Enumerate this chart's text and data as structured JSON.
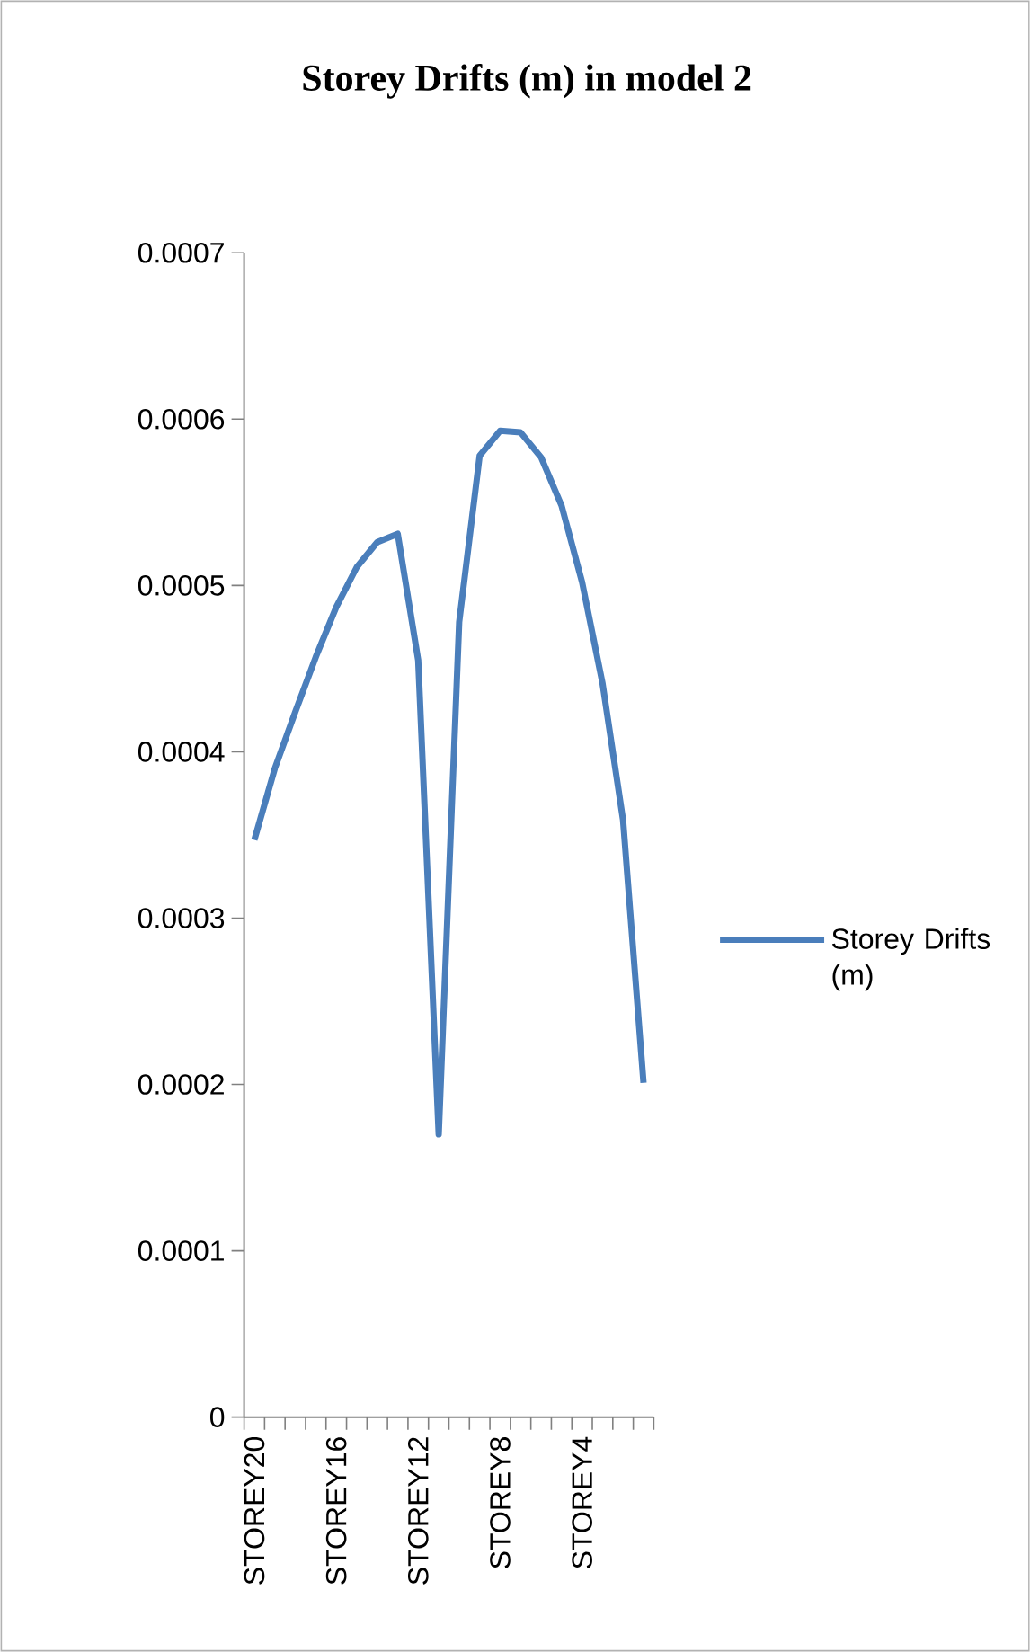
{
  "chart_data": {
    "type": "line",
    "title": "Storey Drifts (m) in model 2",
    "categories": [
      "STOREY20",
      null,
      null,
      null,
      "STOREY16",
      null,
      null,
      null,
      "STOREY12",
      null,
      null,
      null,
      "STOREY8",
      null,
      null,
      null,
      "STOREY4",
      null,
      null,
      null
    ],
    "series": [
      {
        "name": "Storey Drifts (m)",
        "color": "#4a7ebb",
        "values": [
          0.000347,
          0.00039,
          0.000424,
          0.000457,
          0.000487,
          0.000511,
          0.000526,
          0.000531,
          0.000455,
          0.00017,
          0.000478,
          0.000578,
          0.000593,
          0.000592,
          0.000577,
          0.000548,
          0.000502,
          0.000441,
          0.000359,
          0.000201
        ]
      }
    ],
    "ylim": [
      0,
      0.0007
    ],
    "yticks": [
      0,
      0.0001,
      0.0002,
      0.0003,
      0.0004,
      0.0005,
      0.0006,
      0.0007
    ],
    "legend": "right",
    "grid": false,
    "marker": "none",
    "line_style": "solid"
  }
}
